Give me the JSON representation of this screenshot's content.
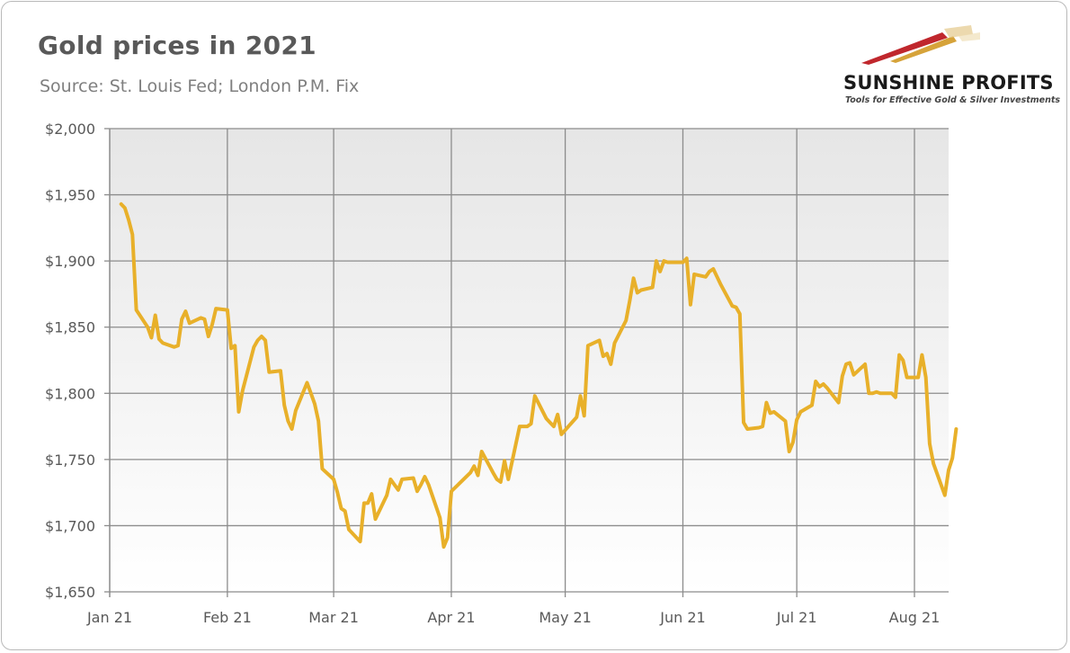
{
  "title": "Gold prices in 2021",
  "subtitle": "Source: St. Louis Fed; London P.M. Fix",
  "logo": {
    "name": "SUNSHINE PROFITS",
    "tagline": "Tools for Effective Gold & Silver Investments"
  },
  "colors": {
    "line": "#e8b02a",
    "grid": "#8c8c8c",
    "plot_top": "#e6e6e6",
    "plot_bottom": "#ffffff",
    "logo_red": "#c0272d",
    "logo_gold": "#d6a33a"
  },
  "chart_data": {
    "type": "line",
    "title": "Gold prices in 2021",
    "subtitle": "Source: St. Louis Fed; London P.M. Fix",
    "xlabel": "",
    "ylabel": "",
    "ylim": [
      1650,
      2000
    ],
    "xlim": [
      "2021-01-01",
      "2021-08-10"
    ],
    "grid": true,
    "legend": "none",
    "y_ticks": [
      {
        "value": 1650,
        "label": "$1,650"
      },
      {
        "value": 1700,
        "label": "$1,700"
      },
      {
        "value": 1750,
        "label": "$1,750"
      },
      {
        "value": 1800,
        "label": "$1,800"
      },
      {
        "value": 1850,
        "label": "$1,850"
      },
      {
        "value": 1900,
        "label": "$1,900"
      },
      {
        "value": 1950,
        "label": "$1,950"
      },
      {
        "value": 2000,
        "label": "$2,000"
      }
    ],
    "x_ticks": [
      {
        "date": "2021-01-01",
        "label": "Jan 21"
      },
      {
        "date": "2021-02-01",
        "label": "Feb 21"
      },
      {
        "date": "2021-03-01",
        "label": "Mar 21"
      },
      {
        "date": "2021-04-01",
        "label": "Apr 21"
      },
      {
        "date": "2021-05-01",
        "label": "May 21"
      },
      {
        "date": "2021-06-01",
        "label": "Jun 21"
      },
      {
        "date": "2021-07-01",
        "label": "Jul 21"
      },
      {
        "date": "2021-08-01",
        "label": "Aug 21"
      }
    ],
    "series": [
      {
        "name": "",
        "points": [
          [
            "2021-01-04",
            1943
          ],
          [
            "2021-01-05",
            1940
          ],
          [
            "2021-01-06",
            1931
          ],
          [
            "2021-01-07",
            1920
          ],
          [
            "2021-01-08",
            1863
          ],
          [
            "2021-01-11",
            1850
          ],
          [
            "2021-01-12",
            1842
          ],
          [
            "2021-01-13",
            1859
          ],
          [
            "2021-01-14",
            1841
          ],
          [
            "2021-01-15",
            1838
          ],
          [
            "2021-01-18",
            1835
          ],
          [
            "2021-01-19",
            1836
          ],
          [
            "2021-01-20",
            1856
          ],
          [
            "2021-01-21",
            1862
          ],
          [
            "2021-01-22",
            1853
          ],
          [
            "2021-01-25",
            1857
          ],
          [
            "2021-01-26",
            1856
          ],
          [
            "2021-01-27",
            1843
          ],
          [
            "2021-01-28",
            1852
          ],
          [
            "2021-01-29",
            1864
          ],
          [
            "2021-02-01",
            1863
          ],
          [
            "2021-02-02",
            1834
          ],
          [
            "2021-02-03",
            1836
          ],
          [
            "2021-02-04",
            1786
          ],
          [
            "2021-02-05",
            1802
          ],
          [
            "2021-02-08",
            1835
          ],
          [
            "2021-02-09",
            1840
          ],
          [
            "2021-02-10",
            1843
          ],
          [
            "2021-02-11",
            1840
          ],
          [
            "2021-02-12",
            1816
          ],
          [
            "2021-02-15",
            1817
          ],
          [
            "2021-02-16",
            1791
          ],
          [
            "2021-02-17",
            1779
          ],
          [
            "2021-02-18",
            1773
          ],
          [
            "2021-02-19",
            1787
          ],
          [
            "2021-02-22",
            1808
          ],
          [
            "2021-02-23",
            1800
          ],
          [
            "2021-02-24",
            1792
          ],
          [
            "2021-02-25",
            1779
          ],
          [
            "2021-02-26",
            1743
          ],
          [
            "2021-03-01",
            1735
          ],
          [
            "2021-03-02",
            1725
          ],
          [
            "2021-03-03",
            1713
          ],
          [
            "2021-03-04",
            1711
          ],
          [
            "2021-03-05",
            1697
          ],
          [
            "2021-03-08",
            1688
          ],
          [
            "2021-03-09",
            1717
          ],
          [
            "2021-03-10",
            1717
          ],
          [
            "2021-03-11",
            1724
          ],
          [
            "2021-03-12",
            1705
          ],
          [
            "2021-03-15",
            1723
          ],
          [
            "2021-03-16",
            1735
          ],
          [
            "2021-03-17",
            1731
          ],
          [
            "2021-03-18",
            1727
          ],
          [
            "2021-03-19",
            1735
          ],
          [
            "2021-03-22",
            1736
          ],
          [
            "2021-03-23",
            1726
          ],
          [
            "2021-03-24",
            1731
          ],
          [
            "2021-03-25",
            1737
          ],
          [
            "2021-03-26",
            1731
          ],
          [
            "2021-03-29",
            1706
          ],
          [
            "2021-03-30",
            1684
          ],
          [
            "2021-03-31",
            1691
          ],
          [
            "2021-04-01",
            1726
          ],
          [
            "2021-04-06",
            1740
          ],
          [
            "2021-04-07",
            1745
          ],
          [
            "2021-04-08",
            1738
          ],
          [
            "2021-04-09",
            1756
          ],
          [
            "2021-04-12",
            1740
          ],
          [
            "2021-04-13",
            1735
          ],
          [
            "2021-04-14",
            1733
          ],
          [
            "2021-04-15",
            1749
          ],
          [
            "2021-04-16",
            1735
          ],
          [
            "2021-04-19",
            1775
          ],
          [
            "2021-04-20",
            1775
          ],
          [
            "2021-04-21",
            1775
          ],
          [
            "2021-04-22",
            1777
          ],
          [
            "2021-04-23",
            1798
          ],
          [
            "2021-04-26",
            1781
          ],
          [
            "2021-04-27",
            1778
          ],
          [
            "2021-04-28",
            1775
          ],
          [
            "2021-04-29",
            1784
          ],
          [
            "2021-04-30",
            1769
          ],
          [
            "2021-05-04",
            1782
          ],
          [
            "2021-05-05",
            1798
          ],
          [
            "2021-05-06",
            1783
          ],
          [
            "2021-05-07",
            1836
          ],
          [
            "2021-05-10",
            1840
          ],
          [
            "2021-05-11",
            1828
          ],
          [
            "2021-05-12",
            1830
          ],
          [
            "2021-05-13",
            1822
          ],
          [
            "2021-05-14",
            1838
          ],
          [
            "2021-05-17",
            1855
          ],
          [
            "2021-05-18",
            1870
          ],
          [
            "2021-05-19",
            1887
          ],
          [
            "2021-05-20",
            1876
          ],
          [
            "2021-05-21",
            1878
          ],
          [
            "2021-05-24",
            1880
          ],
          [
            "2021-05-25",
            1900
          ],
          [
            "2021-05-26",
            1892
          ],
          [
            "2021-05-27",
            1900
          ],
          [
            "2021-05-28",
            1899
          ],
          [
            "2021-06-01",
            1899
          ],
          [
            "2021-06-02",
            1902
          ],
          [
            "2021-06-03",
            1867
          ],
          [
            "2021-06-04",
            1890
          ],
          [
            "2021-06-07",
            1888
          ],
          [
            "2021-06-08",
            1892
          ],
          [
            "2021-06-09",
            1894
          ],
          [
            "2021-06-10",
            1888
          ],
          [
            "2021-06-11",
            1882
          ],
          [
            "2021-06-14",
            1866
          ],
          [
            "2021-06-15",
            1865
          ],
          [
            "2021-06-16",
            1860
          ],
          [
            "2021-06-17",
            1778
          ],
          [
            "2021-06-18",
            1773
          ],
          [
            "2021-06-21",
            1774
          ],
          [
            "2021-06-22",
            1775
          ],
          [
            "2021-06-23",
            1793
          ],
          [
            "2021-06-24",
            1785
          ],
          [
            "2021-06-25",
            1786
          ],
          [
            "2021-06-28",
            1779
          ],
          [
            "2021-06-29",
            1756
          ],
          [
            "2021-06-30",
            1763
          ],
          [
            "2021-07-01",
            1780
          ],
          [
            "2021-07-02",
            1786
          ],
          [
            "2021-07-05",
            1791
          ],
          [
            "2021-07-06",
            1809
          ],
          [
            "2021-07-07",
            1805
          ],
          [
            "2021-07-08",
            1807
          ],
          [
            "2021-07-09",
            1804
          ],
          [
            "2021-07-12",
            1793
          ],
          [
            "2021-07-13",
            1813
          ],
          [
            "2021-07-14",
            1822
          ],
          [
            "2021-07-15",
            1823
          ],
          [
            "2021-07-16",
            1814
          ],
          [
            "2021-07-19",
            1822
          ],
          [
            "2021-07-20",
            1800
          ],
          [
            "2021-07-21",
            1800
          ],
          [
            "2021-07-22",
            1801
          ],
          [
            "2021-07-23",
            1800
          ],
          [
            "2021-07-26",
            1800
          ],
          [
            "2021-07-27",
            1797
          ],
          [
            "2021-07-28",
            1829
          ],
          [
            "2021-07-29",
            1825
          ],
          [
            "2021-07-30",
            1812
          ],
          [
            "2021-08-02",
            1812
          ],
          [
            "2021-08-03",
            1829
          ],
          [
            "2021-08-04",
            1812
          ],
          [
            "2021-08-05",
            1762
          ],
          [
            "2021-08-06",
            1747
          ],
          [
            "2021-08-09",
            1723
          ],
          [
            "2021-08-10",
            1742
          ],
          [
            "2021-08-11",
            1751
          ],
          [
            "2021-08-12",
            1773
          ]
        ]
      }
    ]
  }
}
